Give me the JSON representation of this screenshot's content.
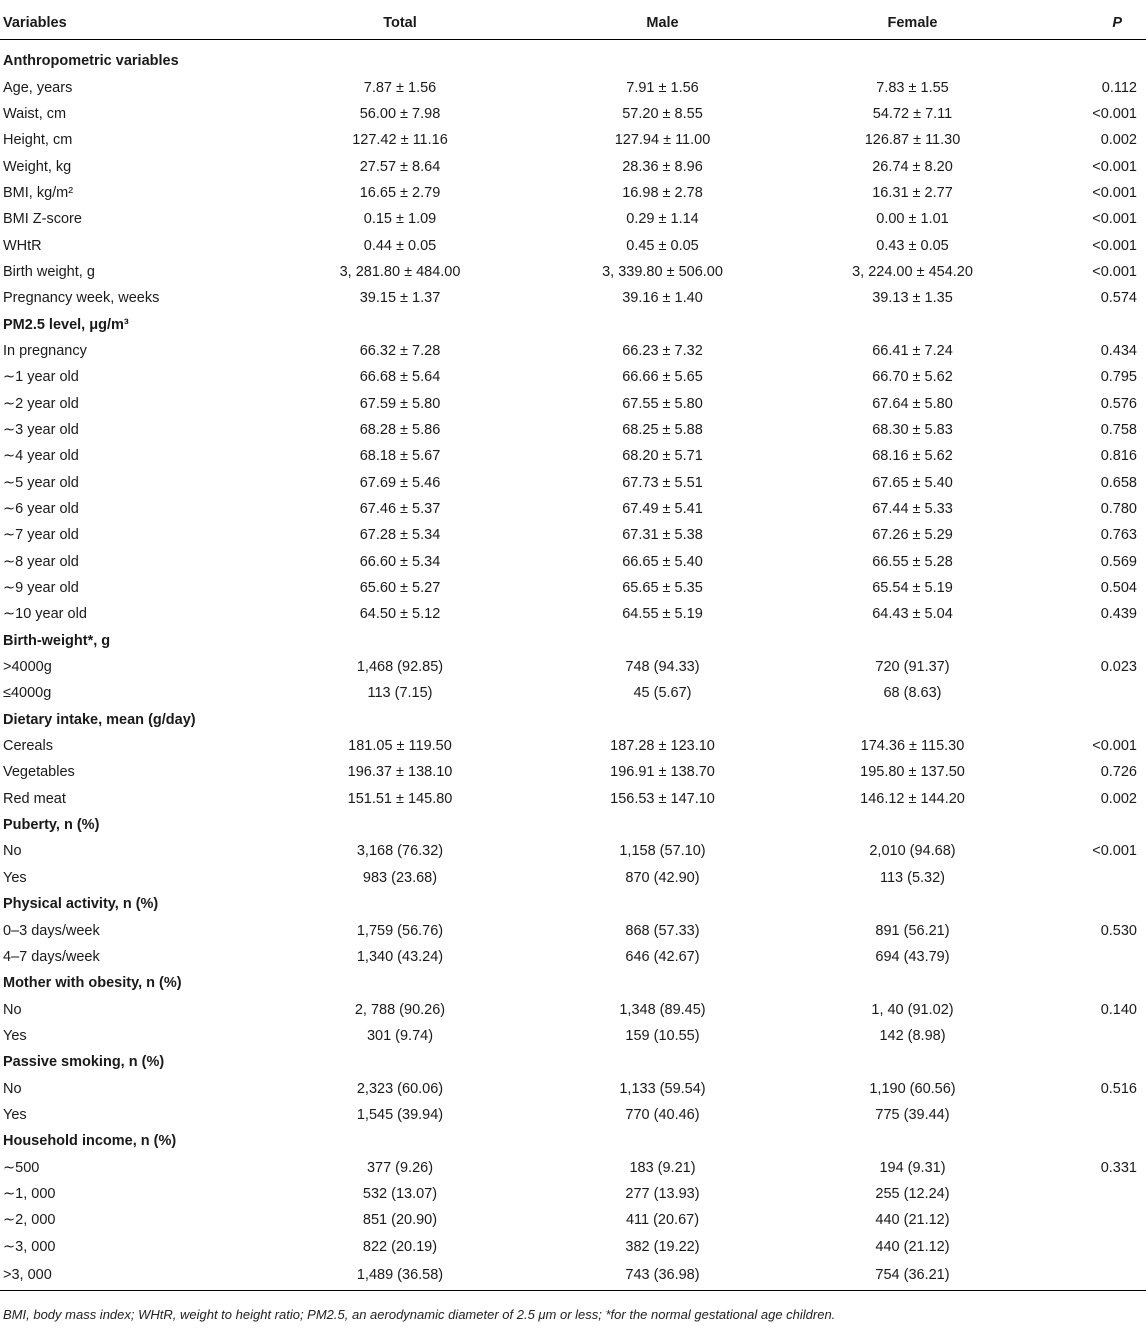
{
  "table": {
    "headers": [
      "Variables",
      "Total",
      "Male",
      "Female",
      "P"
    ],
    "rows": [
      {
        "type": "section",
        "label": "Anthropometric variables"
      },
      {
        "type": "data",
        "label": "Age, years",
        "total": "7.87 ± 1.56",
        "male": "7.91 ± 1.56",
        "female": "7.83 ± 1.55",
        "p": "0.112"
      },
      {
        "type": "data",
        "label": "Waist, cm",
        "total": "56.00 ± 7.98",
        "male": "57.20 ± 8.55",
        "female": "54.72 ± 7.11",
        "p": "<0.001"
      },
      {
        "type": "data",
        "label": "Height, cm",
        "total": "127.42 ± 11.16",
        "male": "127.94 ± 11.00",
        "female": "126.87 ± 11.30",
        "p": "0.002"
      },
      {
        "type": "data",
        "label": "Weight, kg",
        "total": "27.57 ± 8.64",
        "male": "28.36 ± 8.96",
        "female": "26.74 ± 8.20",
        "p": "<0.001"
      },
      {
        "type": "data",
        "label": "BMI, kg/m²",
        "total": "16.65 ± 2.79",
        "male": "16.98 ± 2.78",
        "female": "16.31 ± 2.77",
        "p": "<0.001"
      },
      {
        "type": "data",
        "label": "BMI Z-score",
        "total": "0.15 ± 1.09",
        "male": "0.29 ± 1.14",
        "female": "0.00 ± 1.01",
        "p": "<0.001"
      },
      {
        "type": "data",
        "label": "WHtR",
        "total": "0.44 ± 0.05",
        "male": "0.45 ± 0.05",
        "female": "0.43 ± 0.05",
        "p": "<0.001"
      },
      {
        "type": "data",
        "label": "Birth weight, g",
        "total": "3, 281.80 ± 484.00",
        "male": "3, 339.80 ± 506.00",
        "female": "3, 224.00 ± 454.20",
        "p": "<0.001"
      },
      {
        "type": "data",
        "label": "Pregnancy week, weeks",
        "total": "39.15 ± 1.37",
        "male": "39.16 ± 1.40",
        "female": "39.13 ± 1.35",
        "p": "0.574"
      },
      {
        "type": "section",
        "label": "PM2.5 level, μg/m³"
      },
      {
        "type": "data",
        "label": "In pregnancy",
        "total": "66.32 ± 7.28",
        "male": "66.23 ± 7.32",
        "female": "66.41 ± 7.24",
        "p": "0.434"
      },
      {
        "type": "data",
        "label": "∼1 year old",
        "total": "66.68 ± 5.64",
        "male": "66.66 ± 5.65",
        "female": "66.70 ± 5.62",
        "p": "0.795"
      },
      {
        "type": "data",
        "label": "∼2 year old",
        "total": "67.59 ± 5.80",
        "male": "67.55 ± 5.80",
        "female": "67.64 ± 5.80",
        "p": "0.576"
      },
      {
        "type": "data",
        "label": "∼3 year old",
        "total": "68.28 ± 5.86",
        "male": "68.25 ± 5.88",
        "female": "68.30 ± 5.83",
        "p": "0.758"
      },
      {
        "type": "data",
        "label": "∼4 year old",
        "total": "68.18 ± 5.67",
        "male": "68.20 ± 5.71",
        "female": "68.16 ± 5.62",
        "p": "0.816"
      },
      {
        "type": "data",
        "label": "∼5 year old",
        "total": "67.69 ± 5.46",
        "male": "67.73 ± 5.51",
        "female": "67.65 ± 5.40",
        "p": "0.658"
      },
      {
        "type": "data",
        "label": "∼6 year old",
        "total": "67.46 ± 5.37",
        "male": "67.49 ± 5.41",
        "female": "67.44 ± 5.33",
        "p": "0.780"
      },
      {
        "type": "data",
        "label": "∼7 year old",
        "total": "67.28 ± 5.34",
        "male": "67.31 ± 5.38",
        "female": "67.26 ± 5.29",
        "p": "0.763"
      },
      {
        "type": "data",
        "label": "∼8 year old",
        "total": "66.60 ± 5.34",
        "male": "66.65 ± 5.40",
        "female": "66.55 ± 5.28",
        "p": "0.569"
      },
      {
        "type": "data",
        "label": "∼9 year old",
        "total": "65.60 ± 5.27",
        "male": "65.65 ± 5.35",
        "female": "65.54 ± 5.19",
        "p": "0.504"
      },
      {
        "type": "data",
        "label": "∼10 year old",
        "total": "64.50 ± 5.12",
        "male": "64.55 ± 5.19",
        "female": "64.43 ± 5.04",
        "p": "0.439"
      },
      {
        "type": "section",
        "label": "Birth-weight*, g"
      },
      {
        "type": "data",
        "label": ">4000g",
        "total": "1,468 (92.85)",
        "male": "748 (94.33)",
        "female": "720 (91.37)",
        "p": "0.023"
      },
      {
        "type": "data",
        "label": "≤4000g",
        "total": "113 (7.15)",
        "male": "45 (5.67)",
        "female": "68 (8.63)",
        "p": ""
      },
      {
        "type": "section",
        "label": "Dietary intake, mean (g/day)"
      },
      {
        "type": "data",
        "label": "Cereals",
        "total": "181.05 ± 119.50",
        "male": "187.28 ± 123.10",
        "female": "174.36 ± 115.30",
        "p": "<0.001"
      },
      {
        "type": "data",
        "label": "Vegetables",
        "total": "196.37 ± 138.10",
        "male": "196.91 ± 138.70",
        "female": "195.80 ± 137.50",
        "p": "0.726"
      },
      {
        "type": "data",
        "label": "Red meat",
        "total": "151.51 ± 145.80",
        "male": "156.53 ± 147.10",
        "female": "146.12 ± 144.20",
        "p": "0.002"
      },
      {
        "type": "section",
        "label": "Puberty, n (%)"
      },
      {
        "type": "data",
        "label": "No",
        "total": "3,168 (76.32)",
        "male": "1,158 (57.10)",
        "female": "2,010 (94.68)",
        "p": "<0.001"
      },
      {
        "type": "data",
        "label": "Yes",
        "total": "983 (23.68)",
        "male": "870 (42.90)",
        "female": "113 (5.32)",
        "p": ""
      },
      {
        "type": "section",
        "label": "Physical activity, n (%)"
      },
      {
        "type": "data",
        "label": "0–3 days/week",
        "total": "1,759 (56.76)",
        "male": "868 (57.33)",
        "female": "891 (56.21)",
        "p": "0.530"
      },
      {
        "type": "data",
        "label": "4–7 days/week",
        "total": "1,340 (43.24)",
        "male": "646 (42.67)",
        "female": "694 (43.79)",
        "p": ""
      },
      {
        "type": "section",
        "label": "Mother with obesity, n (%)"
      },
      {
        "type": "data",
        "label": "No",
        "total": "2, 788 (90.26)",
        "male": "1,348 (89.45)",
        "female": "1, 40 (91.02)",
        "p": "0.140"
      },
      {
        "type": "data",
        "label": "Yes",
        "total": "301 (9.74)",
        "male": "159 (10.55)",
        "female": "142 (8.98)",
        "p": ""
      },
      {
        "type": "section",
        "label": "Passive smoking, n (%)"
      },
      {
        "type": "data",
        "label": "No",
        "total": "2,323 (60.06)",
        "male": "1,133 (59.54)",
        "female": "1,190 (60.56)",
        "p": "0.516"
      },
      {
        "type": "data",
        "label": "Yes",
        "total": "1,545 (39.94)",
        "male": "770 (40.46)",
        "female": "775 (39.44)",
        "p": ""
      },
      {
        "type": "section",
        "label": "Household income, n (%)"
      },
      {
        "type": "data",
        "label": "∼500",
        "total": "377 (9.26)",
        "male": "183 (9.21)",
        "female": "194 (9.31)",
        "p": "0.331"
      },
      {
        "type": "data",
        "label": "∼1, 000",
        "total": "532 (13.07)",
        "male": "277 (13.93)",
        "female": "255 (12.24)",
        "p": ""
      },
      {
        "type": "data",
        "label": "∼2, 000",
        "total": "851 (20.90)",
        "male": "411 (20.67)",
        "female": "440 (21.12)",
        "p": ""
      },
      {
        "type": "data",
        "label": "∼3, 000",
        "total": "822 (20.19)",
        "male": "382 (19.22)",
        "female": "440 (21.12)",
        "p": ""
      },
      {
        "type": "data",
        "label": ">3, 000",
        "total": "1,489 (36.58)",
        "male": "743 (36.98)",
        "female": "754 (36.21)",
        "p": ""
      }
    ]
  },
  "footnote": "BMI, body mass index; WHtR, weight to height ratio; PM2.5, an aerodynamic diameter of 2.5 μm or less; *for the normal gestational age children."
}
